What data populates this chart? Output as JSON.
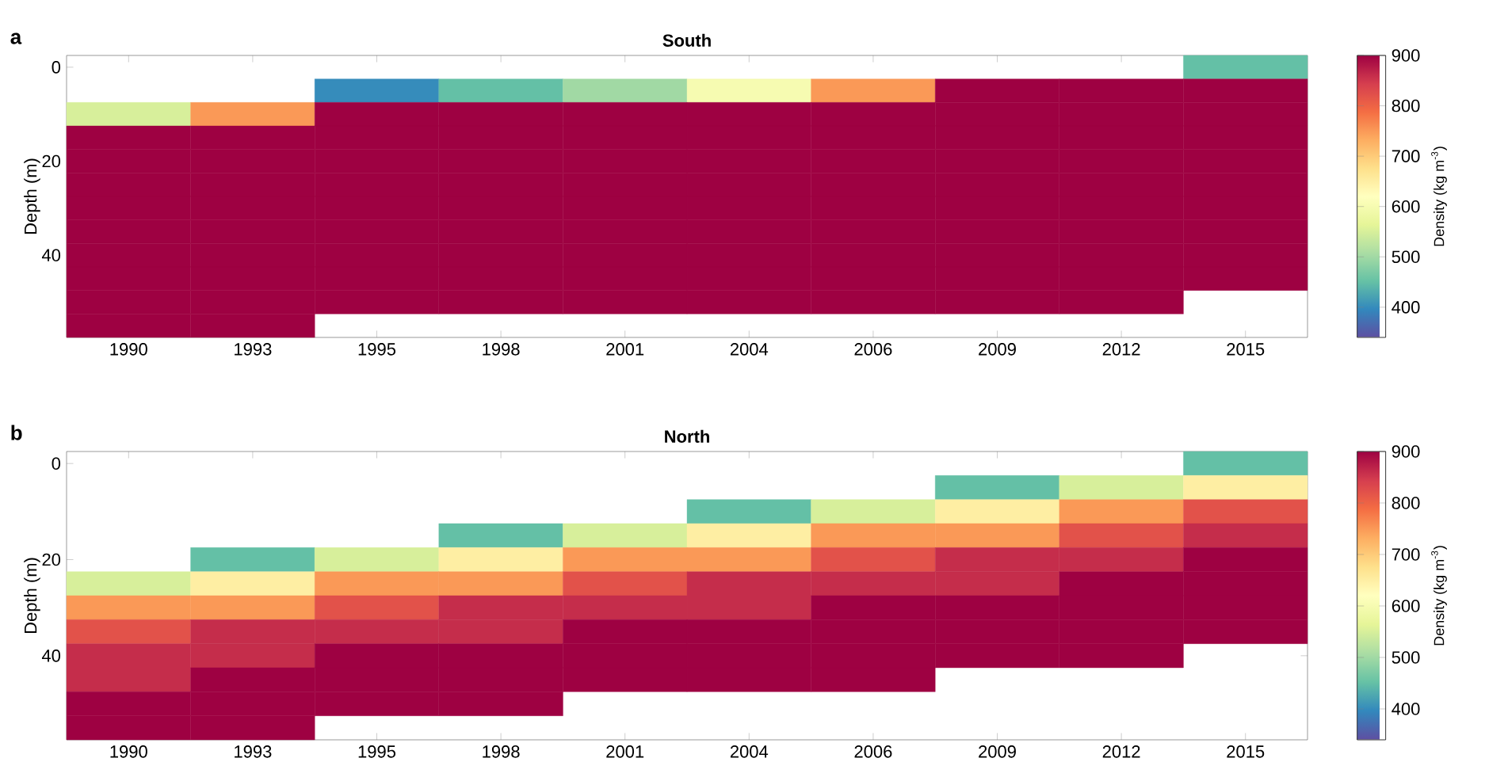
{
  "chart_data": [
    {
      "type": "heatmap",
      "title": "South",
      "ylabel": "Depth (m)",
      "clabel": "Density (kg m$^{-3}$)",
      "annotations": [
        "**a**"
      ],
      "categories": [
        "1990",
        "1993",
        "1995",
        "1998",
        "2001",
        "2004",
        "2006",
        "2009",
        "2012",
        "2015"
      ],
      "y_categories": [
        "0",
        null,
        null,
        null,
        "20",
        null,
        null,
        null,
        "40",
        null,
        null,
        null
      ],
      "cells": [
        [
          null,
          null,
          null,
          null,
          null,
          null,
          null,
          null,
          null,
          450
        ],
        [
          null,
          null,
          400,
          450,
          500,
          600,
          750,
          900,
          900,
          900
        ],
        [
          550,
          750,
          900,
          900,
          900,
          900,
          900,
          900,
          900,
          900
        ],
        [
          900,
          900,
          900,
          900,
          900,
          900,
          900,
          900,
          900,
          900
        ],
        [
          900,
          900,
          900,
          900,
          900,
          900,
          900,
          900,
          900,
          900
        ],
        [
          900,
          900,
          900,
          900,
          900,
          900,
          900,
          900,
          900,
          900
        ],
        [
          900,
          900,
          900,
          900,
          900,
          900,
          900,
          900,
          900,
          900
        ],
        [
          900,
          900,
          900,
          900,
          900,
          900,
          900,
          900,
          900,
          900
        ],
        [
          900,
          900,
          900,
          900,
          900,
          900,
          900,
          900,
          900,
          900
        ],
        [
          900,
          900,
          900,
          900,
          900,
          900,
          900,
          900,
          900,
          900
        ],
        [
          900,
          900,
          900,
          900,
          900,
          900,
          900,
          900,
          900,
          null
        ],
        [
          900,
          900,
          null,
          null,
          null,
          null,
          null,
          null,
          null,
          null
        ]
      ],
      "clim": [
        340,
        900
      ],
      "cticks": [
        400,
        500,
        600,
        700,
        800,
        900
      ]
    },
    {
      "type": "heatmap",
      "title": "North",
      "ylabel": "Depth (m)",
      "clabel": "Density (kg m$^{-3}$)",
      "annotations": [
        "**b**"
      ],
      "categories": [
        "1990",
        "1993",
        "1995",
        "1998",
        "2001",
        "2004",
        "2006",
        "2009",
        "2012",
        "2015"
      ],
      "y_categories": [
        "0",
        null,
        null,
        null,
        "20",
        null,
        null,
        null,
        "40",
        null,
        null,
        null
      ],
      "cells": [
        [
          null,
          null,
          null,
          null,
          null,
          null,
          null,
          null,
          null,
          450
        ],
        [
          null,
          null,
          null,
          null,
          null,
          null,
          null,
          450,
          550,
          650
        ],
        [
          null,
          null,
          null,
          null,
          null,
          450,
          550,
          650,
          750,
          820
        ],
        [
          null,
          null,
          null,
          450,
          550,
          650,
          750,
          750,
          820,
          860
        ],
        [
          null,
          450,
          550,
          650,
          750,
          750,
          820,
          860,
          860,
          900
        ],
        [
          550,
          650,
          750,
          750,
          820,
          860,
          860,
          860,
          900,
          900
        ],
        [
          750,
          750,
          820,
          860,
          860,
          860,
          900,
          900,
          900,
          900
        ],
        [
          820,
          860,
          860,
          860,
          900,
          900,
          900,
          900,
          900,
          900
        ],
        [
          860,
          860,
          900,
          900,
          900,
          900,
          900,
          900,
          900,
          null
        ],
        [
          860,
          900,
          900,
          900,
          900,
          900,
          900,
          null,
          null,
          null
        ],
        [
          900,
          900,
          900,
          900,
          null,
          null,
          null,
          null,
          null,
          null
        ],
        [
          900,
          900,
          null,
          null,
          null,
          null,
          null,
          null,
          null,
          null
        ]
      ],
      "clim": [
        340,
        900
      ],
      "cticks": [
        400,
        500,
        600,
        700,
        800,
        900
      ]
    }
  ]
}
